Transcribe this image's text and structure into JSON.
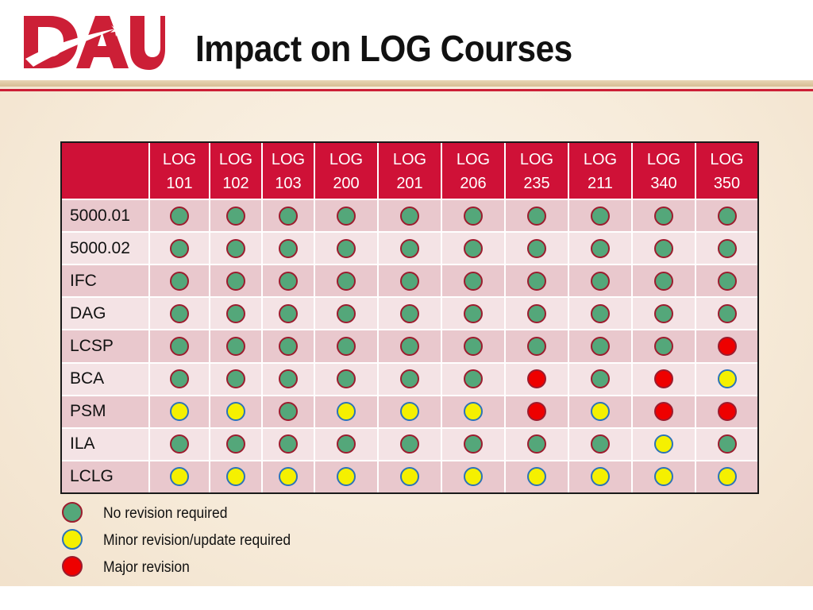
{
  "slide": {
    "title": "Impact on LOG Courses",
    "logo_text": "DAU"
  },
  "colors": {
    "brand_red": "#cf1137",
    "no_revision": "#54a77a",
    "minor_revision": "#f5f000",
    "major_revision": "#ee0000"
  },
  "columns": [
    {
      "line1": "LOG",
      "line2": "101"
    },
    {
      "line1": "LOG",
      "line2": "102"
    },
    {
      "line1": "LOG",
      "line2": "103"
    },
    {
      "line1": "LOG",
      "line2": "200"
    },
    {
      "line1": "LOG",
      "line2": "201"
    },
    {
      "line1": "LOG",
      "line2": "206"
    },
    {
      "line1": "LOG",
      "line2": "235"
    },
    {
      "line1": "LOG",
      "line2": "211"
    },
    {
      "line1": "LOG",
      "line2": "340"
    },
    {
      "line1": "LOG",
      "line2": "350"
    }
  ],
  "rows": [
    {
      "label": "5000.01",
      "status": [
        "none",
        "none",
        "none",
        "none",
        "none",
        "none",
        "none",
        "none",
        "none",
        "none"
      ]
    },
    {
      "label": "5000.02",
      "status": [
        "none",
        "none",
        "none",
        "none",
        "none",
        "none",
        "none",
        "none",
        "none",
        "none"
      ]
    },
    {
      "label": "IFC",
      "status": [
        "none",
        "none",
        "none",
        "none",
        "none",
        "none",
        "none",
        "none",
        "none",
        "none"
      ]
    },
    {
      "label": "DAG",
      "status": [
        "none",
        "none",
        "none",
        "none",
        "none",
        "none",
        "none",
        "none",
        "none",
        "none"
      ]
    },
    {
      "label": "LCSP",
      "status": [
        "none",
        "none",
        "none",
        "none",
        "none",
        "none",
        "none",
        "none",
        "none",
        "major"
      ]
    },
    {
      "label": "BCA",
      "status": [
        "none",
        "none",
        "none",
        "none",
        "none",
        "none",
        "major",
        "none",
        "major",
        "minor"
      ]
    },
    {
      "label": "PSM",
      "status": [
        "minor",
        "minor",
        "none",
        "minor",
        "minor",
        "minor",
        "major",
        "minor",
        "major",
        "major"
      ]
    },
    {
      "label": "ILA",
      "status": [
        "none",
        "none",
        "none",
        "none",
        "none",
        "none",
        "none",
        "none",
        "minor",
        "none"
      ]
    },
    {
      "label": "LCLG",
      "status": [
        "minor",
        "minor",
        "minor",
        "minor",
        "minor",
        "minor",
        "minor",
        "minor",
        "minor",
        "minor"
      ]
    }
  ],
  "legend": [
    {
      "status": "none",
      "label": "No revision required"
    },
    {
      "status": "minor",
      "label": "Minor revision/update required"
    },
    {
      "status": "major",
      "label": "Major revision"
    }
  ]
}
